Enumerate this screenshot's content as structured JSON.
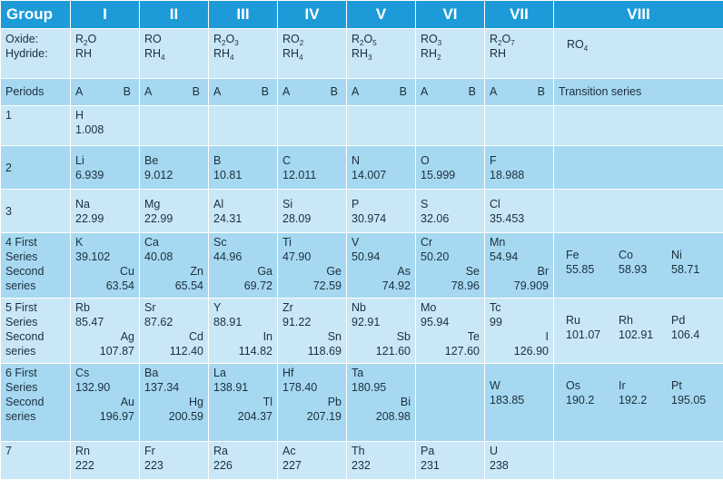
{
  "header": {
    "group_label": "Group",
    "groups": [
      "I",
      "II",
      "III",
      "IV",
      "V",
      "VI",
      "VII",
      "VIII"
    ]
  },
  "oxide_row": {
    "label_1": "Oxide:",
    "label_2": "Hydride:",
    "cells": [
      {
        "oxide": [
          "R",
          "2",
          "O"
        ],
        "hydride": [
          "RH",
          "",
          ""
        ]
      },
      {
        "oxide": [
          "RO",
          "",
          ""
        ],
        "hydride": [
          "RH",
          "4",
          ""
        ]
      },
      {
        "oxide": [
          "R",
          "2",
          "O",
          "3"
        ],
        "hydride": [
          "RH",
          "4",
          ""
        ]
      },
      {
        "oxide": [
          "RO",
          "2",
          ""
        ],
        "hydride": [
          "RH",
          "4",
          ""
        ]
      },
      {
        "oxide": [
          "R",
          "2",
          "O",
          "5"
        ],
        "hydride": [
          "RH",
          "3",
          ""
        ]
      },
      {
        "oxide": [
          "RO",
          "3",
          ""
        ],
        "hydride": [
          "RH",
          "2",
          ""
        ]
      },
      {
        "oxide": [
          "R",
          "2",
          "O",
          "7"
        ],
        "hydride": [
          "RH",
          "",
          ""
        ]
      },
      {
        "oxide": [
          "RO",
          "4",
          ""
        ],
        "hydride": [
          "",
          "",
          ""
        ]
      }
    ]
  },
  "periods_row": {
    "label": "Periods",
    "a": "A",
    "b": "B",
    "transition": "Transition series"
  },
  "rows": [
    {
      "label": [
        "1"
      ],
      "cells": [
        {
          "a": [
            "H",
            "1.008"
          ]
        },
        {},
        {},
        {},
        {},
        {},
        {}
      ],
      "transition": []
    },
    {
      "label": [
        "2"
      ],
      "cells": [
        {
          "a": [
            "Li",
            "6.939"
          ]
        },
        {
          "a": [
            "Be",
            "9.012"
          ]
        },
        {
          "a": [
            "B",
            "10.81"
          ]
        },
        {
          "a": [
            "C",
            "12.011"
          ]
        },
        {
          "a": [
            "N",
            "14.007"
          ]
        },
        {
          "a": [
            "O",
            "15.999"
          ]
        },
        {
          "a": [
            "F",
            "18.988"
          ]
        }
      ],
      "transition": []
    },
    {
      "label": [
        "3"
      ],
      "cells": [
        {
          "a": [
            "Na",
            "22.99"
          ]
        },
        {
          "a": [
            "Mg",
            "22.99"
          ]
        },
        {
          "a": [
            "Al",
            "24.31"
          ]
        },
        {
          "a": [
            "Si",
            "28.09"
          ]
        },
        {
          "a": [
            "P",
            "30.974"
          ]
        },
        {
          "a": [
            "S",
            "32.06"
          ]
        },
        {
          "a": [
            "Cl",
            "35.453"
          ]
        }
      ],
      "transition": []
    },
    {
      "label": [
        "4 First",
        "Series",
        "Second",
        "series"
      ],
      "cells": [
        {
          "a": [
            "K",
            "39.102"
          ],
          "b": [
            "Cu",
            "63.54"
          ]
        },
        {
          "a": [
            "Ca",
            "40.08"
          ],
          "b": [
            "Zn",
            "65.54"
          ]
        },
        {
          "a": [
            "Sc",
            "44.96"
          ],
          "b": [
            "Ga",
            "69.72"
          ]
        },
        {
          "a": [
            "Ti",
            "47.90"
          ],
          "b": [
            "Ge",
            "72.59"
          ]
        },
        {
          "a": [
            "V",
            "50.94"
          ],
          "b": [
            "As",
            "74.92"
          ]
        },
        {
          "a": [
            "Cr",
            "50.20"
          ],
          "b": [
            "Se",
            "78.96"
          ]
        },
        {
          "a": [
            "Mn",
            "54.94"
          ],
          "b": [
            "Br",
            "79.909"
          ]
        }
      ],
      "transition": [
        [
          "Fe",
          "55.85"
        ],
        [
          "Co",
          "58.93"
        ],
        [
          "Ni",
          "58.71"
        ]
      ]
    },
    {
      "label": [
        "5 First",
        "Series",
        "Second",
        "series"
      ],
      "cells": [
        {
          "a": [
            "Rb",
            "85.47"
          ],
          "b": [
            "Ag",
            "107.87"
          ]
        },
        {
          "a": [
            "Sr",
            "87.62"
          ],
          "b": [
            "Cd",
            "112.40"
          ]
        },
        {
          "a": [
            "Y",
            "88.91"
          ],
          "b": [
            "In",
            "114.82"
          ]
        },
        {
          "a": [
            "Zr",
            "91.22"
          ],
          "b": [
            "Sn",
            "118.69"
          ]
        },
        {
          "a": [
            "Nb",
            "92.91"
          ],
          "b": [
            "Sb",
            "121.60"
          ]
        },
        {
          "a": [
            "Mo",
            "95.94"
          ],
          "b": [
            "Te",
            "127.60"
          ]
        },
        {
          "a": [
            "Tc",
            "99"
          ],
          "b": [
            "I",
            "126.90"
          ]
        }
      ],
      "transition": [
        [
          "Ru",
          "101.07"
        ],
        [
          "Rh",
          "102.91"
        ],
        [
          "Pd",
          "106.4"
        ]
      ]
    },
    {
      "label": [
        "6 First",
        "Series",
        "Second",
        "series"
      ],
      "cells": [
        {
          "a": [
            "Cs",
            "132.90"
          ],
          "b": [
            "Au",
            "196.97"
          ]
        },
        {
          "a": [
            "Ba",
            "137.34"
          ],
          "b": [
            "Hg",
            "200.59"
          ]
        },
        {
          "a": [
            "La",
            "138.91"
          ],
          "b": [
            "Tl",
            "204.37"
          ]
        },
        {
          "a": [
            "Hf",
            "178.40"
          ],
          "b": [
            "Pb",
            "207.19"
          ]
        },
        {
          "a": [
            "Ta",
            "180.95"
          ],
          "b": [
            "Bi",
            "208.98"
          ]
        },
        {},
        {
          "mid": [
            "W",
            "183.85"
          ]
        }
      ],
      "transition": [
        [
          "Os",
          "190.2"
        ],
        [
          "Ir",
          "192.2"
        ],
        [
          "Pt",
          "195.05"
        ]
      ]
    },
    {
      "label": [
        "7"
      ],
      "cells": [
        {
          "a": [
            "Rn",
            "222"
          ]
        },
        {
          "a": [
            "Fr",
            "223"
          ]
        },
        {
          "a": [
            "Ra",
            "226"
          ]
        },
        {
          "a": [
            "Ac",
            "227"
          ]
        },
        {
          "a": [
            "Th",
            "232"
          ]
        },
        {
          "a": [
            "Pa",
            "231"
          ]
        },
        {
          "a": [
            "U",
            "238"
          ]
        }
      ],
      "transition": []
    }
  ]
}
